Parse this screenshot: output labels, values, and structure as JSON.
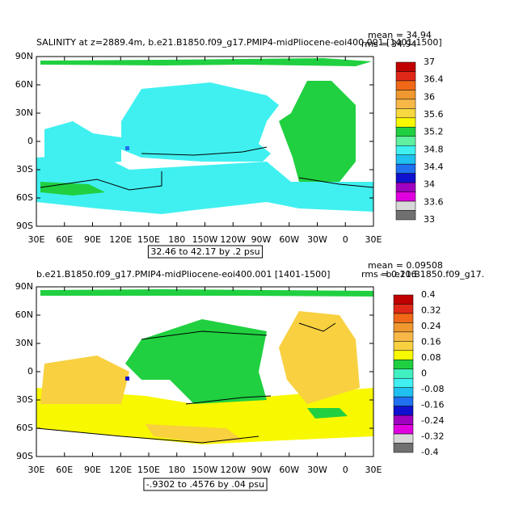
{
  "panels": [
    {
      "title": "SALINITY at z=2889.4m, b.e21.B1850.f09_g17.PMIP4-midPliocene-eoi400.001  [1401-1500]",
      "mean": "mean = 34.94",
      "rms": "rms = 34.94",
      "xlim": [
        30,
        390
      ],
      "ylim": [
        -90,
        90
      ],
      "xticks": [
        {
          "value": 30,
          "label": "30E"
        },
        {
          "value": 60,
          "label": "60E"
        },
        {
          "value": 90,
          "label": "90E"
        },
        {
          "value": 120,
          "label": "120E"
        },
        {
          "value": 150,
          "label": "150E"
        },
        {
          "value": 180,
          "label": "180"
        },
        {
          "value": 210,
          "label": "150W"
        },
        {
          "value": 240,
          "label": "120W"
        },
        {
          "value": 270,
          "label": "90W"
        },
        {
          "value": 300,
          "label": "60W"
        },
        {
          "value": 330,
          "label": "30W"
        },
        {
          "value": 360,
          "label": "0"
        },
        {
          "value": 390,
          "label": "30E"
        }
      ],
      "yticks": [
        {
          "value": 90,
          "label": "90N"
        },
        {
          "value": 60,
          "label": "60N"
        },
        {
          "value": 30,
          "label": "30N"
        },
        0,
        {
          "value": -30,
          "label": "30S"
        },
        {
          "value": -60,
          "label": "60S"
        },
        {
          "value": -90,
          "label": "90S"
        }
      ],
      "colorbar": {
        "colors": [
          "#c00000",
          "#e02818",
          "#f06818",
          "#f09830",
          "#f8b848",
          "#f8d840",
          "#f8f800",
          "#20d040",
          "#60f0a0",
          "#40f0f0",
          "#20c0f0",
          "#2070f0",
          "#1010d0",
          "#a000c0",
          "#e000e0",
          "#d8d8d8",
          "#707070"
        ],
        "labels": [
          37,
          36.4,
          36,
          35.6,
          35.2,
          34.8,
          34.4,
          34,
          33.6,
          33
        ]
      },
      "info": "32.46 to 42.17 by .2 psu"
    },
    {
      "title": "b.e21.B1850.f09_g17.PMIP4-midPliocene-eoi400.001  [1401-1500]",
      "title_right": "- b.e21.B1850.f09_g17.",
      "mean": "mean = 0.09508",
      "rms": "rms = 0.106",
      "xlim": [
        30,
        390
      ],
      "ylim": [
        -90,
        90
      ],
      "xticks": [
        {
          "value": 30,
          "label": "30E"
        },
        {
          "value": 60,
          "label": "60E"
        },
        {
          "value": 90,
          "label": "90E"
        },
        {
          "value": 120,
          "label": "120E"
        },
        {
          "value": 150,
          "label": "150E"
        },
        {
          "value": 180,
          "label": "180"
        },
        {
          "value": 210,
          "label": "150W"
        },
        {
          "value": 240,
          "label": "120W"
        },
        {
          "value": 270,
          "label": "90W"
        },
        {
          "value": 300,
          "label": "60W"
        },
        {
          "value": 330,
          "label": "30W"
        },
        {
          "value": 360,
          "label": "0"
        },
        {
          "value": 390,
          "label": "30E"
        }
      ],
      "yticks": [
        {
          "value": 90,
          "label": "90N"
        },
        {
          "value": 60,
          "label": "60N"
        },
        {
          "value": 30,
          "label": "30N"
        },
        0,
        {
          "value": -30,
          "label": "30S"
        },
        {
          "value": -60,
          "label": "60S"
        },
        {
          "value": -90,
          "label": "90S"
        }
      ],
      "colorbar": {
        "colors": [
          "#c00000",
          "#e02818",
          "#f06818",
          "#f09830",
          "#f8b848",
          "#f8d040",
          "#f8f800",
          "#20d040",
          "#40f0c0",
          "#40f0f0",
          "#20c0f0",
          "#2070f0",
          "#1010d0",
          "#a000c0",
          "#e000e0",
          "#d8d8d8",
          "#707070"
        ],
        "labels": [
          0.4,
          0.32,
          0.24,
          0.16,
          0.08,
          0,
          -0.08,
          -0.16,
          -0.24,
          -0.32,
          -0.4
        ]
      },
      "info": "-.9302 to .4576 by .04 psu"
    }
  ]
}
